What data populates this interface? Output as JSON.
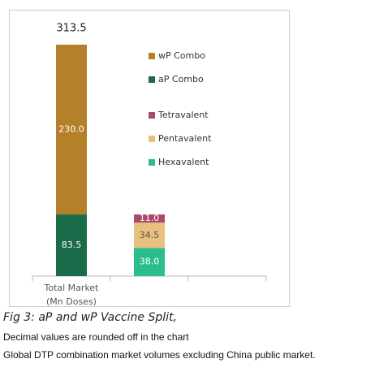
{
  "chart_data": {
    "type": "bar",
    "stacked": true,
    "categories": [
      "Total Market\n(Mn Doses)",
      null,
      null
    ],
    "totals": [
      313.5,
      null,
      null
    ],
    "series": [
      {
        "name": "wP Combo",
        "color": "#b5802a",
        "values": [
          230,
          null,
          null
        ],
        "value_labels": [
          "230.0",
          null,
          null
        ]
      },
      {
        "name": "aP Combo",
        "color": "#1a6b4a",
        "values": [
          83.5,
          null,
          null
        ]
      },
      {
        "name": "Tetravalent",
        "color": "#a84a6b",
        "values": [
          null,
          11,
          null
        ],
        "value_labels": [
          null,
          "11.0",
          null
        ]
      },
      {
        "name": "Pentavalent",
        "color": "#e8c07f",
        "values": [
          null,
          34.5,
          null
        ]
      },
      {
        "name": "Hexavalent",
        "color": "#2bbd8e",
        "values": [
          null,
          38,
          null
        ],
        "value_labels": [
          null,
          "38.0",
          null
        ]
      }
    ],
    "caption": "Fig 3: aP and wP Vaccine Split,",
    "notes": [
      "Decimal values are rounded off in the chart",
      "Global DTP combination market volumes excluding China public market."
    ]
  }
}
